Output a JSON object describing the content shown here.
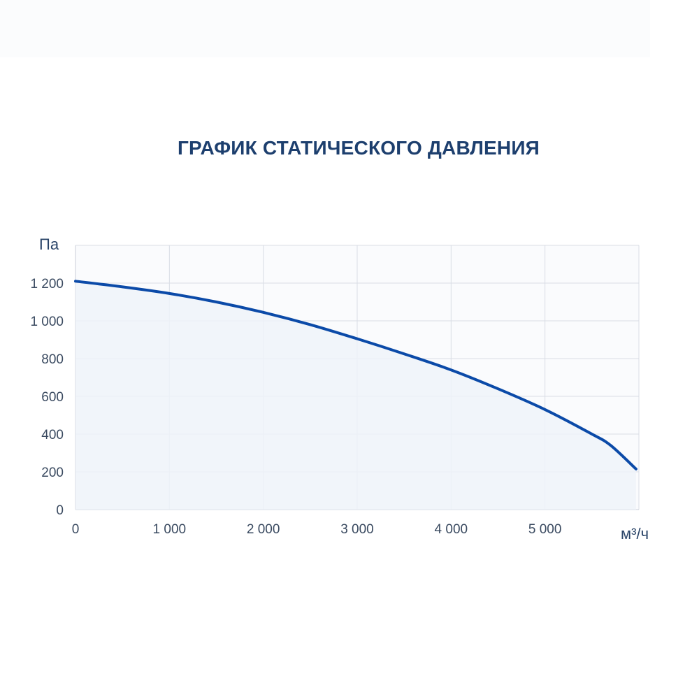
{
  "chart_data": {
    "type": "area",
    "title": "ГРАФИК СТАТИЧЕСКОГО ДАВЛЕНИЯ",
    "ylabel": "Па",
    "xlabel": "м³/ч",
    "xlim": [
      0,
      6000
    ],
    "ylim": [
      0,
      1400
    ],
    "x_ticks": [
      {
        "value": 0,
        "label": "0"
      },
      {
        "value": 1000,
        "label": "1 000"
      },
      {
        "value": 2000,
        "label": "2 000"
      },
      {
        "value": 3000,
        "label": "3 000"
      },
      {
        "value": 4000,
        "label": "4 000"
      },
      {
        "value": 5000,
        "label": "5 000"
      }
    ],
    "y_ticks": [
      {
        "value": 0,
        "label": "0"
      },
      {
        "value": 200,
        "label": "200"
      },
      {
        "value": 400,
        "label": "400"
      },
      {
        "value": 600,
        "label": "600"
      },
      {
        "value": 800,
        "label": "800"
      },
      {
        "value": 1000,
        "label": "1 000"
      },
      {
        "value": 1200,
        "label": "1 200"
      }
    ],
    "grid": true,
    "series": [
      {
        "color": "#0b4aa8",
        "x": [
          0,
          500,
          1000,
          1500,
          2000,
          2500,
          3000,
          3500,
          4000,
          4500,
          5000,
          5500,
          5700,
          5970
        ],
        "y": [
          1210,
          1180,
          1145,
          1100,
          1045,
          980,
          905,
          825,
          740,
          640,
          530,
          400,
          340,
          215
        ]
      }
    ]
  }
}
